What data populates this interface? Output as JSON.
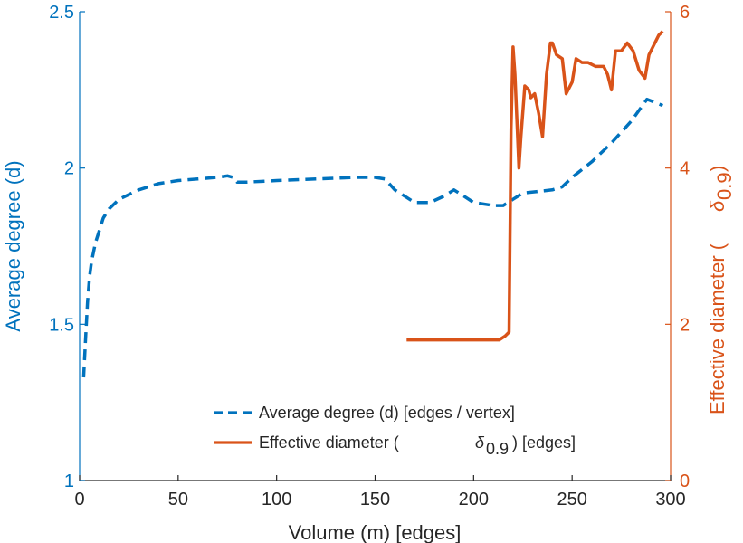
{
  "chart_data": {
    "type": "line",
    "title": "",
    "xlabel": "Volume (m) [edges]",
    "ylabel_left": "Average degree (d)",
    "ylabel_right_text": "Effective diameter (",
    "ylabel_right_symbol": "δ",
    "ylabel_right_subscript": "0.9",
    "ylabel_right_close": ")",
    "xlim": [
      0,
      300
    ],
    "ylim_left": [
      1,
      2.5
    ],
    "ylim_right": [
      0,
      6
    ],
    "x_ticks": [
      "0",
      "50",
      "100",
      "150",
      "200",
      "250",
      "300"
    ],
    "y_left_ticks": [
      "1",
      "1.5",
      "2",
      "2.5"
    ],
    "y_right_ticks": [
      "0",
      "2",
      "4",
      "6"
    ],
    "grid": false,
    "legend_position": "bottom-center",
    "colors": {
      "avg_degree": "#0072BD",
      "eff_diameter": "#D95319",
      "axis_left": "#0072BD",
      "axis_right": "#D95319",
      "axis_bottom": "#262626"
    },
    "series": [
      {
        "key": "avg_degree",
        "name": "Average degree (d) [edges / vertex]",
        "axis": "left",
        "style": "dashed",
        "points": [
          [
            2,
            1.33
          ],
          [
            3,
            1.45
          ],
          [
            4,
            1.57
          ],
          [
            5,
            1.65
          ],
          [
            6,
            1.7
          ],
          [
            8,
            1.76
          ],
          [
            10,
            1.8
          ],
          [
            12,
            1.84
          ],
          [
            15,
            1.87
          ],
          [
            20,
            1.9
          ],
          [
            30,
            1.93
          ],
          [
            40,
            1.95
          ],
          [
            50,
            1.96
          ],
          [
            60,
            1.965
          ],
          [
            70,
            1.97
          ],
          [
            75,
            1.975
          ],
          [
            78,
            1.97
          ],
          [
            80,
            1.955
          ],
          [
            85,
            1.955
          ],
          [
            100,
            1.96
          ],
          [
            120,
            1.965
          ],
          [
            140,
            1.97
          ],
          [
            150,
            1.97
          ],
          [
            155,
            1.965
          ],
          [
            160,
            1.93
          ],
          [
            170,
            1.89
          ],
          [
            178,
            1.89
          ],
          [
            185,
            1.91
          ],
          [
            190,
            1.93
          ],
          [
            195,
            1.91
          ],
          [
            200,
            1.89
          ],
          [
            210,
            1.88
          ],
          [
            215,
            1.88
          ],
          [
            220,
            1.9
          ],
          [
            225,
            1.92
          ],
          [
            240,
            1.93
          ],
          [
            245,
            1.94
          ],
          [
            250,
            1.97
          ],
          [
            260,
            2.02
          ],
          [
            270,
            2.08
          ],
          [
            280,
            2.15
          ],
          [
            288,
            2.22
          ],
          [
            292,
            2.21
          ],
          [
            296,
            2.2
          ]
        ]
      },
      {
        "key": "eff_diameter",
        "name": "Effective diameter (",
        "name_symbol": "δ",
        "name_subscript": "0.9",
        "name_suffix": ") [edges]",
        "axis": "right",
        "style": "solid",
        "points": [
          [
            166,
            1.8
          ],
          [
            180,
            1.8
          ],
          [
            200,
            1.8
          ],
          [
            213,
            1.8
          ],
          [
            216,
            1.85
          ],
          [
            218,
            1.9
          ],
          [
            219,
            4.5
          ],
          [
            220,
            5.55
          ],
          [
            221,
            5.2
          ],
          [
            223,
            4.0
          ],
          [
            224,
            4.4
          ],
          [
            226,
            5.05
          ],
          [
            228,
            5.0
          ],
          [
            229,
            4.9
          ],
          [
            231,
            4.95
          ],
          [
            233,
            4.7
          ],
          [
            235,
            4.4
          ],
          [
            237,
            5.2
          ],
          [
            239,
            5.6
          ],
          [
            240,
            5.6
          ],
          [
            242,
            5.45
          ],
          [
            245,
            5.4
          ],
          [
            247,
            4.95
          ],
          [
            250,
            5.1
          ],
          [
            252,
            5.4
          ],
          [
            255,
            5.35
          ],
          [
            258,
            5.35
          ],
          [
            262,
            5.3
          ],
          [
            266,
            5.3
          ],
          [
            268,
            5.2
          ],
          [
            270,
            5.0
          ],
          [
            272,
            5.5
          ],
          [
            275,
            5.5
          ],
          [
            278,
            5.6
          ],
          [
            281,
            5.5
          ],
          [
            284,
            5.25
          ],
          [
            287,
            5.15
          ],
          [
            289,
            5.45
          ],
          [
            292,
            5.6
          ],
          [
            294,
            5.7
          ],
          [
            296,
            5.75
          ]
        ]
      }
    ]
  }
}
